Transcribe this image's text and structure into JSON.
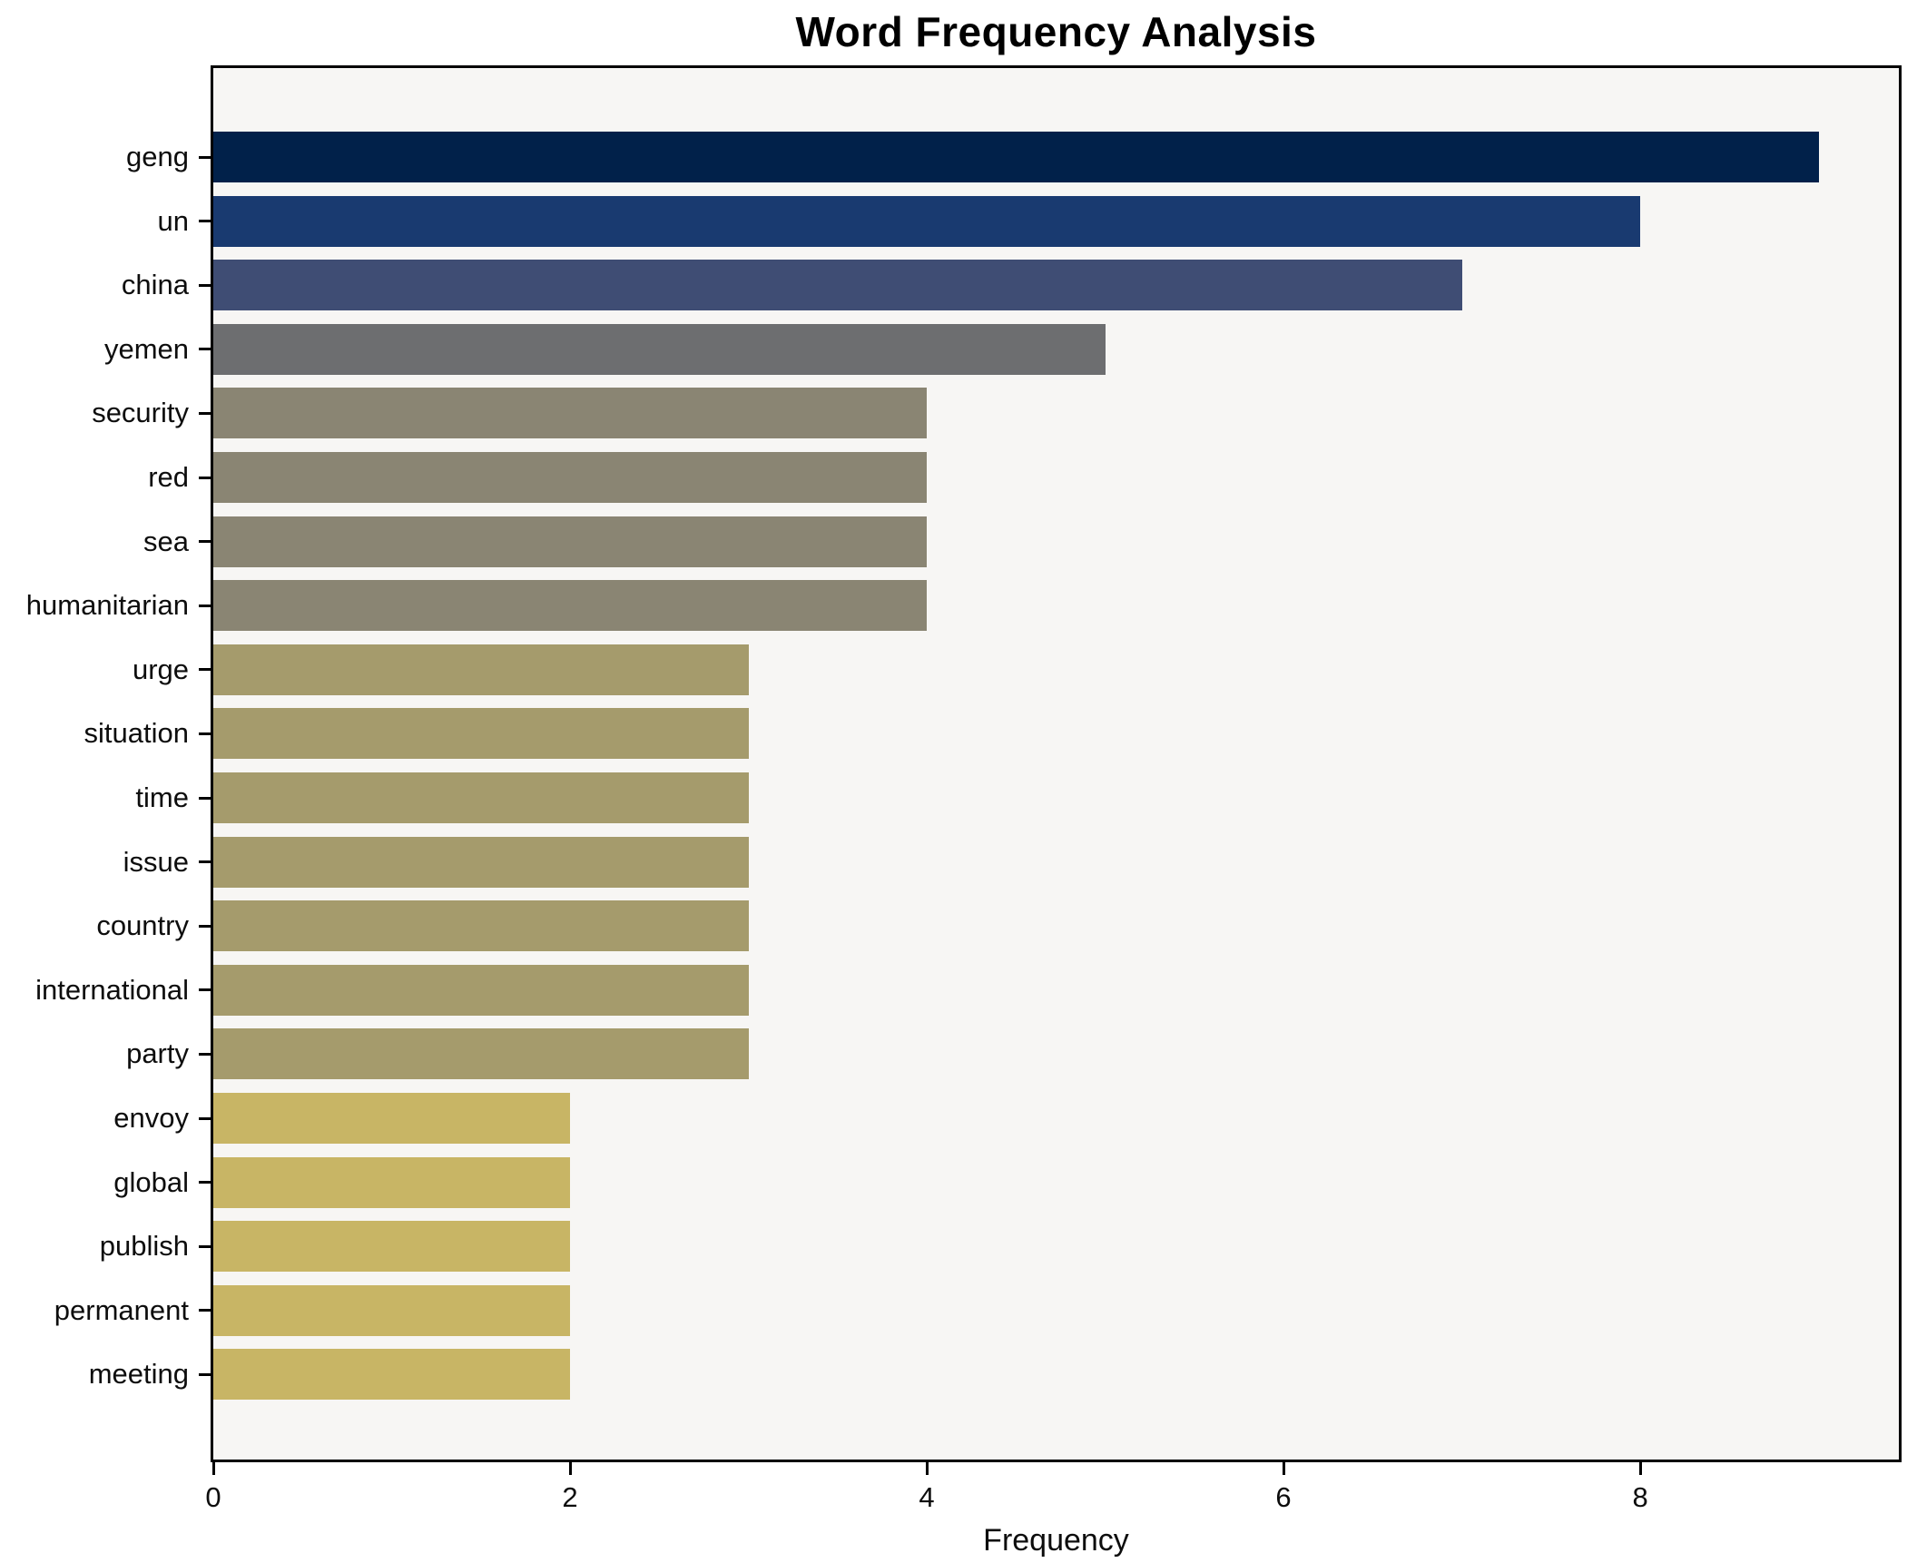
{
  "title": "Word Frequency Analysis",
  "xlabel": "Frequency",
  "chart_data": {
    "type": "bar",
    "orientation": "horizontal",
    "title": "Word Frequency Analysis",
    "xlabel": "Frequency",
    "ylabel": "",
    "grid": false,
    "legend": false,
    "xlim": [
      0,
      9.45
    ],
    "xticks": [
      0,
      2,
      4,
      6,
      8
    ],
    "categories": [
      "geng",
      "un",
      "china",
      "yemen",
      "security",
      "red",
      "sea",
      "humanitarian",
      "urge",
      "situation",
      "time",
      "issue",
      "country",
      "international",
      "party",
      "envoy",
      "global",
      "publish",
      "permanent",
      "meeting"
    ],
    "values": [
      9,
      8,
      7,
      5,
      4,
      4,
      4,
      4,
      3,
      3,
      3,
      3,
      3,
      3,
      3,
      2,
      2,
      2,
      2,
      2
    ],
    "bar_colors": [
      "#01214a",
      "#193a70",
      "#3f4d74",
      "#6d6e70",
      "#8a8573",
      "#8a8573",
      "#8a8573",
      "#8a8573",
      "#a59b6c",
      "#a59b6c",
      "#a59b6c",
      "#a59b6c",
      "#a59b6c",
      "#a59b6c",
      "#a59b6c",
      "#c8b565",
      "#c8b565",
      "#c8b565",
      "#c8b565",
      "#c8b565"
    ]
  },
  "colors": {
    "figure_bg": "#ffffff",
    "plot_bg": "#f7f6f4",
    "frame": "#000000",
    "text": "#0d0d0d"
  }
}
